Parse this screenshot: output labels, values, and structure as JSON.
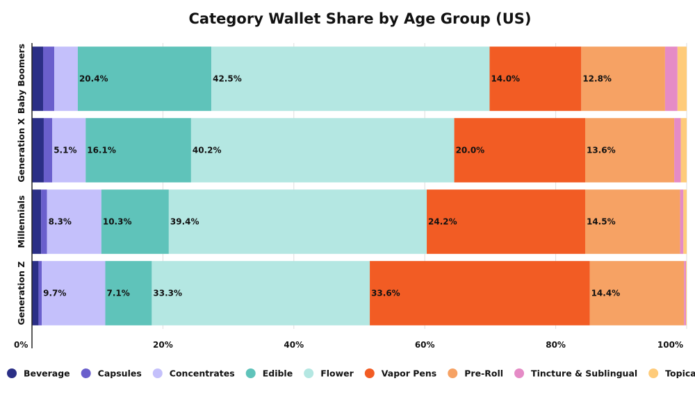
{
  "chart_data": {
    "type": "bar",
    "orientation": "horizontal",
    "stacked": true,
    "title": "Category Wallet Share by Age Group (US)",
    "xlabel": "",
    "ylabel": "",
    "xlim": [
      0,
      100
    ],
    "ticks": [
      0,
      20,
      40,
      60,
      80,
      100
    ],
    "tick_labels": [
      "0%",
      "20%",
      "40%",
      "60%",
      "80%",
      "100%"
    ],
    "categories": [
      "Baby Boomers",
      "Generation X",
      "Millennials",
      "Generation Z"
    ],
    "legend_position": "bottom",
    "grid": true,
    "series": [
      {
        "name": "Beverage",
        "color": "#2b2f86",
        "values": [
          1.7,
          1.8,
          1.4,
          1.0
        ],
        "labels": [
          "",
          "",
          "",
          ""
        ]
      },
      {
        "name": "Capsules",
        "color": "#6a5fcc",
        "values": [
          1.7,
          1.3,
          0.9,
          0.5
        ],
        "labels": [
          "",
          "",
          "",
          ""
        ]
      },
      {
        "name": "Concentrates",
        "color": "#c4c0fb",
        "values": [
          3.6,
          5.1,
          8.3,
          9.7
        ],
        "labels": [
          "",
          "5.1%",
          "8.3%",
          "9.7%"
        ]
      },
      {
        "name": "Edible",
        "color": "#5fc3ba",
        "values": [
          20.4,
          16.1,
          10.3,
          7.1
        ],
        "labels": [
          "20.4%",
          "16.1%",
          "10.3%",
          "7.1%"
        ]
      },
      {
        "name": "Flower",
        "color": "#b4e7e2",
        "values": [
          42.5,
          40.2,
          39.4,
          33.3
        ],
        "labels": [
          "42.5%",
          "40.2%",
          "39.4%",
          "33.3%"
        ]
      },
      {
        "name": "Vapor Pens",
        "color": "#f25c24",
        "values": [
          14.0,
          20.0,
          24.2,
          33.6
        ],
        "labels": [
          "14.0%",
          "20.0%",
          "24.2%",
          "33.6%"
        ]
      },
      {
        "name": "Pre-Roll",
        "color": "#f6a264",
        "values": [
          12.8,
          13.6,
          14.5,
          14.4
        ],
        "labels": [
          "12.8%",
          "13.6%",
          "14.5%",
          "14.4%"
        ]
      },
      {
        "name": "Tincture & Sublingual",
        "color": "#e58bc6",
        "values": [
          1.9,
          1.0,
          0.5,
          0.3
        ],
        "labels": [
          "",
          "",
          "",
          ""
        ]
      },
      {
        "name": "Topical",
        "color": "#fecb7a",
        "values": [
          1.4,
          0.9,
          0.5,
          0.1
        ],
        "labels": [
          "",
          "",
          "",
          ""
        ]
      }
    ]
  }
}
